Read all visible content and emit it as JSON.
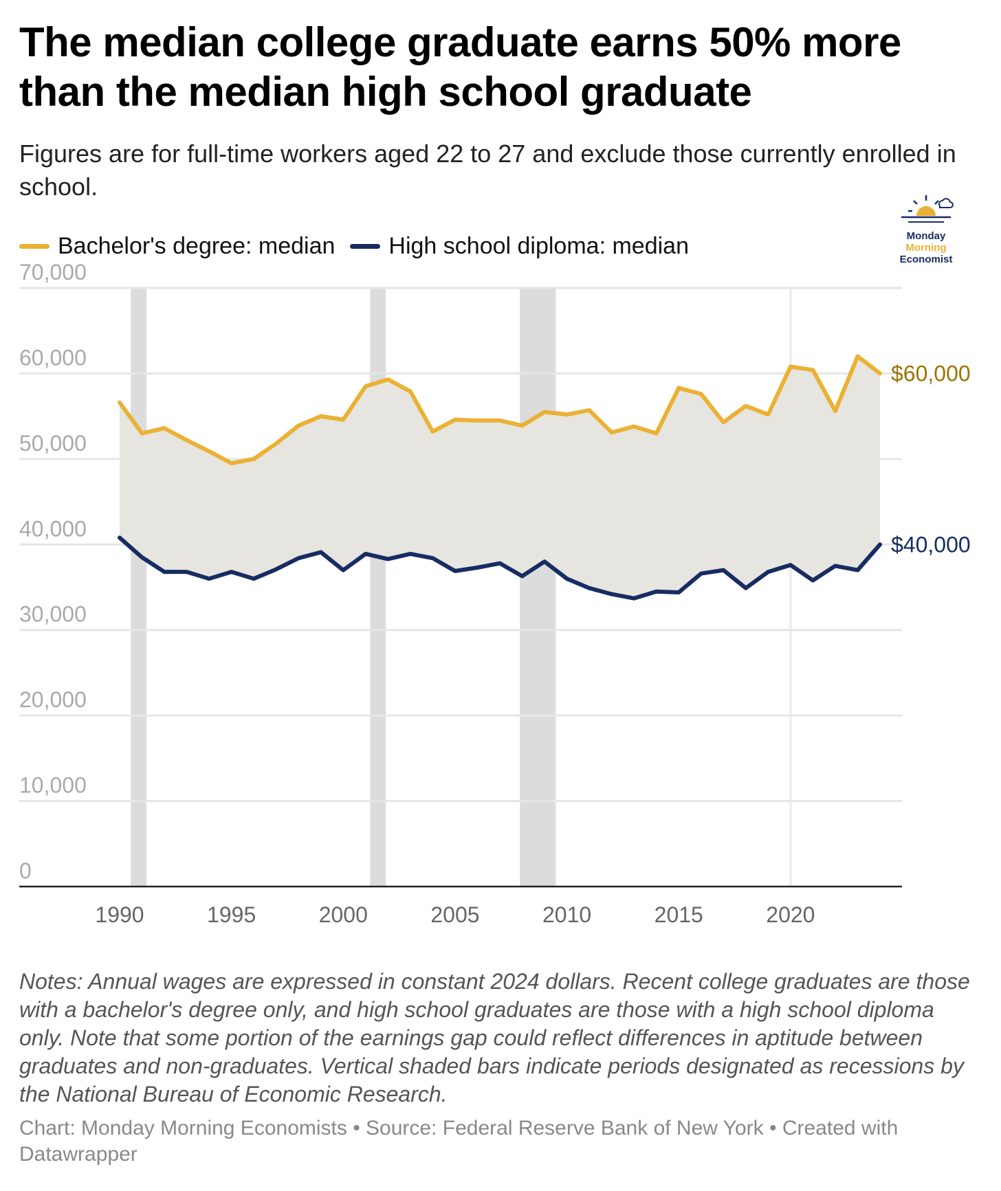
{
  "title": "The median college graduate earns 50% more than the median high school graduate",
  "subtitle": "Figures are for full-time workers aged 22 to 27 and exclude those currently enrolled in school.",
  "legend": [
    {
      "label": "Bachelor's degree: median",
      "color": "#EBB134"
    },
    {
      "label": "High school diploma: median",
      "color": "#172C63"
    }
  ],
  "logo": {
    "line1": "Monday",
    "line2": "Morning",
    "line3": "Economist"
  },
  "colors": {
    "bachelor": "#EBB134",
    "bachelor_label": "#9C7300",
    "highschool": "#172C63",
    "fill": "#E6E5DF",
    "recession": "#DCDCDC",
    "grid": "#E6E6E6",
    "axis_text": "#AAAAAA",
    "x_text": "#666666"
  },
  "chart_data": {
    "type": "line",
    "x": [
      1990,
      1991,
      1992,
      1993,
      1994,
      1995,
      1996,
      1997,
      1998,
      1999,
      2000,
      2001,
      2002,
      2003,
      2004,
      2005,
      2006,
      2007,
      2008,
      2009,
      2010,
      2011,
      2012,
      2013,
      2014,
      2015,
      2016,
      2017,
      2018,
      2019,
      2020,
      2021,
      2022,
      2023,
      2024
    ],
    "series": [
      {
        "name": "Bachelor's degree: median",
        "values": [
          56600,
          53000,
          53600,
          52200,
          50900,
          49500,
          50000,
          51800,
          53900,
          55000,
          54600,
          58500,
          59300,
          57900,
          53200,
          54600,
          54500,
          54500,
          53900,
          55500,
          55200,
          55700,
          53100,
          53800,
          53000,
          58300,
          57600,
          54300,
          56200,
          55200,
          60800,
          60400,
          55600,
          62000,
          60000
        ]
      },
      {
        "name": "High school diploma: median",
        "values": [
          40800,
          38500,
          36800,
          36800,
          36000,
          36800,
          36000,
          37100,
          38400,
          39100,
          37000,
          38900,
          38300,
          38900,
          38400,
          36900,
          37300,
          37800,
          36300,
          38000,
          36000,
          34900,
          34200,
          33700,
          34500,
          34400,
          36600,
          37000,
          34900,
          36800,
          37600,
          35800,
          37500,
          37000,
          40000
        ]
      }
    ],
    "end_labels": [
      "$60,000",
      "$40,000"
    ],
    "y_ticks": [
      "0",
      "10,000",
      "20,000",
      "30,000",
      "40,000",
      "50,000",
      "60,000",
      "70,000"
    ],
    "x_ticks": [
      "1990",
      "1995",
      "2000",
      "2005",
      "2010",
      "2015",
      "2020"
    ],
    "ylim": [
      0,
      70000
    ],
    "recessions": [
      [
        1990.5,
        1991.2
      ],
      [
        2001.2,
        2001.9
      ],
      [
        2007.9,
        2009.5
      ]
    ],
    "highlight_line_x": 2020,
    "grid": true
  },
  "notes": "Notes: Annual wages are expressed in constant 2024 dollars. Recent college graduates are those with a bachelor's degree only, and high school graduates are those with a high school diploma only. Note that some portion of the earnings gap could reflect differences in aptitude between graduates and non-graduates. Vertical shaded bars indicate periods designated as recessions by the National Bureau of Economic Research.",
  "credits": "Chart: Monday Morning Economists • Source: Federal Reserve Bank of New York • Created with Datawrapper"
}
